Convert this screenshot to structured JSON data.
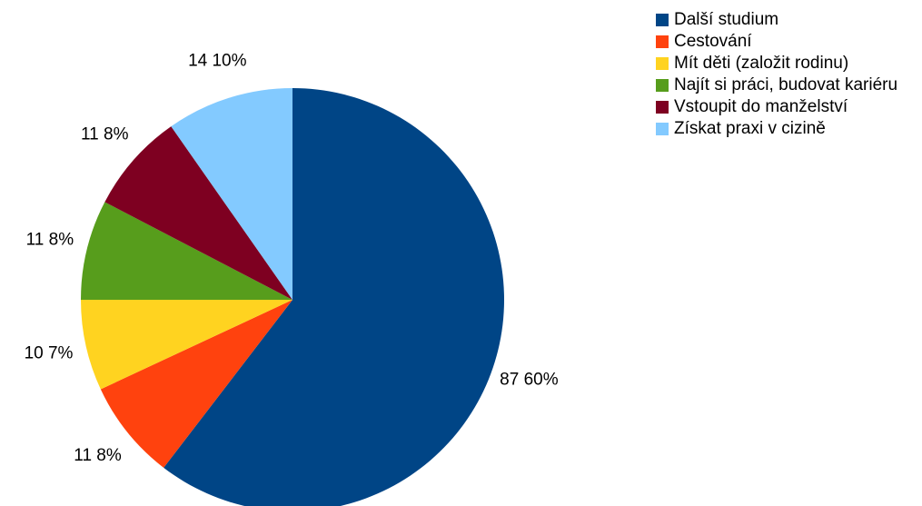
{
  "chart_data": {
    "type": "pie",
    "categories": [
      "Další studium",
      "Cestování",
      "Mít děti (založit rodinu)",
      "Najít si práci, budovat kariéru",
      "Vstoupit do manželství",
      "Získat praxi v cizině"
    ],
    "values": [
      87,
      11,
      10,
      11,
      11,
      14
    ],
    "value_labels": [
      "87 60%",
      "11 8%",
      "10 7%",
      "11 8%",
      "11 8%",
      "14 10%"
    ],
    "colors": [
      "#004586",
      "#ff420e",
      "#ffd320",
      "#579d1c",
      "#7e0021",
      "#83caff"
    ],
    "legend": "right"
  }
}
